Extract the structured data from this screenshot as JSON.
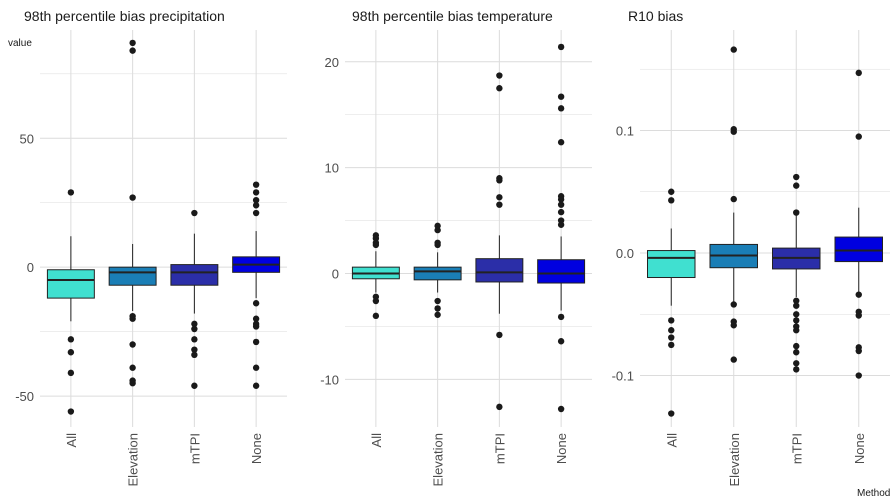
{
  "ylabel": "value",
  "xlabel": "Method",
  "colors": {
    "All": "#40e0d0",
    "Elevation": "#1a7eb6",
    "mTPI": "#2b2ea8",
    "None": "#0000e0",
    "grid": "#dcdcdc",
    "outline": "#222222",
    "point": "#1a1a1a"
  },
  "chart_data": [
    {
      "type": "box",
      "title": "98th percentile bias precipitation",
      "categories": [
        "All",
        "Elevation",
        "mTPI",
        "None"
      ],
      "ylim": [
        -62,
        92
      ],
      "yticks": [
        -50,
        0,
        50
      ],
      "ytick_labels": [
        "-50",
        "0",
        "50"
      ],
      "boxes": [
        {
          "category": "All",
          "whisker_low": -21,
          "q1": -12,
          "median": -5,
          "q3": -1,
          "whisker_high": 12,
          "outliers": [
            29,
            -28,
            -33,
            -41,
            -56
          ]
        },
        {
          "category": "Elevation",
          "whisker_low": -17,
          "q1": -7,
          "median": -2,
          "q3": 0,
          "whisker_high": 9,
          "outliers": [
            87,
            84,
            27,
            -19,
            -20,
            -30,
            -39,
            -44,
            -45
          ]
        },
        {
          "category": "mTPI",
          "whisker_low": -18,
          "q1": -7,
          "median": -2,
          "q3": 1,
          "whisker_high": 13,
          "outliers": [
            21,
            -22,
            -24,
            -28,
            -32,
            -34,
            -46
          ]
        },
        {
          "category": "None",
          "whisker_low": -12,
          "q1": -2,
          "median": 1,
          "q3": 4,
          "whisker_high": 14,
          "outliers": [
            32,
            29,
            26,
            24,
            21,
            -14,
            -20,
            -22,
            -23,
            -29,
            -39,
            -46
          ]
        }
      ]
    },
    {
      "type": "box",
      "title": "98th percentile bias temperature",
      "categories": [
        "All",
        "Elevation",
        "mTPI",
        "None"
      ],
      "ylim": [
        -14.5,
        23
      ],
      "yticks": [
        -10,
        0,
        10,
        20
      ],
      "ytick_labels": [
        "-10",
        "0",
        "10",
        "20"
      ],
      "boxes": [
        {
          "category": "All",
          "whisker_low": -1.8,
          "q1": -0.5,
          "median": 0,
          "q3": 0.6,
          "whisker_high": 2.1,
          "outliers": [
            3.6,
            3.3,
            2.9,
            2.7,
            -2.2,
            -2.6,
            -4.0
          ]
        },
        {
          "category": "Elevation",
          "whisker_low": -1.8,
          "q1": -0.6,
          "median": 0.2,
          "q3": 0.6,
          "whisker_high": 2.0,
          "outliers": [
            4.5,
            4.1,
            2.9,
            2.7,
            -2.6,
            -3.3,
            -3.9
          ]
        },
        {
          "category": "mTPI",
          "whisker_low": -3.8,
          "q1": -0.8,
          "median": 0.1,
          "q3": 1.4,
          "whisker_high": 3.6,
          "outliers": [
            18.7,
            17.5,
            9.0,
            8.8,
            7.2,
            6.5,
            -5.8,
            -12.6
          ]
        },
        {
          "category": "None",
          "whisker_low": -3.5,
          "q1": -0.9,
          "median": 0,
          "q3": 1.3,
          "whisker_high": 3.5,
          "outliers": [
            21.4,
            16.7,
            15.6,
            12.4,
            7.3,
            7.0,
            6.5,
            5.8,
            5.0,
            4.6,
            -4.1,
            -6.4,
            -12.8
          ]
        }
      ]
    },
    {
      "type": "box",
      "title": "R10 bias",
      "categories": [
        "All",
        "Elevation",
        "mTPI",
        "None"
      ],
      "ylim": [
        -0.142,
        0.182
      ],
      "yticks": [
        -0.1,
        0.0,
        0.1
      ],
      "ytick_labels": [
        "-0.1",
        "0.0",
        "0.1"
      ],
      "boxes": [
        {
          "category": "All",
          "whisker_low": -0.043,
          "q1": -0.02,
          "median": -0.004,
          "q3": 0.002,
          "whisker_high": 0.02,
          "outliers": [
            0.05,
            0.043,
            -0.055,
            -0.063,
            -0.069,
            -0.075,
            -0.131
          ]
        },
        {
          "category": "Elevation",
          "whisker_low": -0.04,
          "q1": -0.012,
          "median": -0.002,
          "q3": 0.007,
          "whisker_high": 0.033,
          "outliers": [
            0.166,
            0.101,
            0.099,
            0.044,
            -0.042,
            -0.056,
            -0.059,
            -0.087
          ]
        },
        {
          "category": "mTPI",
          "whisker_low": -0.036,
          "q1": -0.013,
          "median": -0.004,
          "q3": 0.004,
          "whisker_high": 0.033,
          "outliers": [
            0.062,
            0.055,
            0.033,
            -0.039,
            -0.043,
            -0.05,
            -0.055,
            -0.06,
            -0.063,
            -0.076,
            -0.081,
            -0.09,
            -0.095
          ]
        },
        {
          "category": "None",
          "whisker_low": -0.034,
          "q1": -0.007,
          "median": 0.002,
          "q3": 0.013,
          "whisker_high": 0.037,
          "outliers": [
            0.147,
            0.095,
            -0.034,
            -0.048,
            -0.051,
            -0.077,
            -0.08,
            -0.1
          ]
        }
      ]
    }
  ]
}
